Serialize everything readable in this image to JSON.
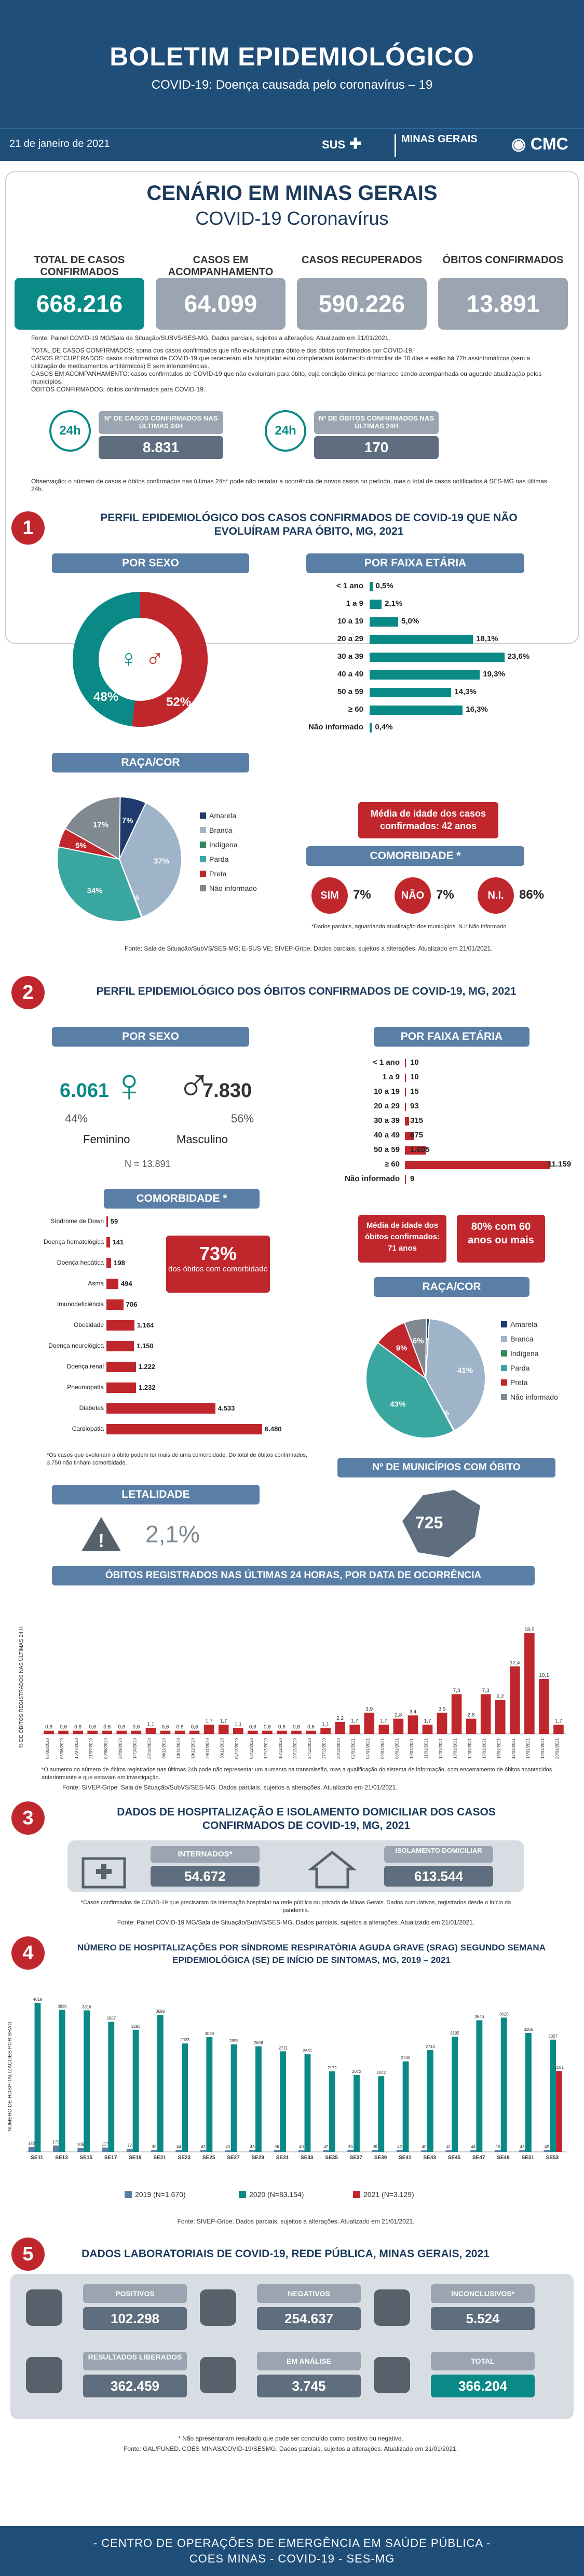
{
  "header": {
    "title": "BOLETIM EPIDEMIOLÓGICO",
    "subtitle": "COVID-19: Doença causada pelo coronavírus – 19"
  },
  "subbar": {
    "date": "21 de janeiro de 2021",
    "sus": "SUS",
    "mg": "MINAS GERAIS",
    "cmc": "CMC"
  },
  "scenario": {
    "title1": "CENÁRIO EM MINAS GERAIS",
    "title2": "COVID-19 Coronavírus",
    "stats": [
      {
        "label": "TOTAL DE CASOS CONFIRMADOS",
        "value": "668.216",
        "color": "#0a8a86"
      },
      {
        "label": "CASOS EM ACOMPANHAMENTO",
        "value": "64.099",
        "color": "#9aa5b1"
      },
      {
        "label": "CASOS RECUPERADOS",
        "value": "590.226",
        "color": "#9aa5b1"
      },
      {
        "label": "ÓBITOS CONFIRMADOS",
        "value": "13.891",
        "color": "#9aa5b1"
      }
    ],
    "fonte": "Fonte: Painel COVID-19 MG/Sala de Situação/SUBVS/SES-MG. Dados parciais, sujeitos a alterações. Atualizado em 21/01/2021.",
    "defs": [
      "TOTAL DE CASOS CONFIRMADOS: soma dos casos confirmados que não evoluíram para óbito e dos óbitos confirmados por COVID-19.",
      "CASOS RECUPERADOS: casos confirmados de COVID-19 que receberam alta hospitalar e/ou completaram isolamento domiciliar de 10 dias e estão há 72h assintomáticos (sem a utilização de medicamentos antitérmicos) E sem intercorrências.",
      "CASOS EM ACOMPANHAMENTO: casos confirmados de COVID-19 que não evoluíram para óbito, cuja condição clínica permanece sendo acompanhada ou aguarde atualização pelos municípios.",
      "ÓBITOS CONFIRMADOS: óbitos confirmados para COVID-19."
    ],
    "last24": [
      {
        "icon": "24h",
        "label": "Nº DE CASOS CONFIRMADOS NAS ÚLTIMAS 24H",
        "value": "8.831"
      },
      {
        "icon": "24h",
        "label": "Nº DE ÓBITOS CONFIRMADOS NAS ÚLTIMAS 24H",
        "value": "170"
      }
    ],
    "obs": "Observação: o número de casos e óbitos confirmados nas últimas 24h* pode não retratar a ocorrência de novos casos no período, mas o total de casos notificados à SES-MG nas últimas 24h."
  },
  "s1": {
    "num": "1",
    "title": "PERFIL EPIDEMIOLÓGICO DOS CASOS CONFIRMADOS DE COVID-19 QUE NÃO EVOLUÍRAM PARA ÓBITO, MG, 2021",
    "sexo_hdr": "POR SEXO",
    "sexo": {
      "f": "48%",
      "m": "52%"
    },
    "faixa_hdr": "POR FAIXA ETÁRIA",
    "faixa": [
      {
        "l": "< 1 ano",
        "v": "0,5%",
        "p": 0.5
      },
      {
        "l": "1 a 9",
        "v": "2,1%",
        "p": 2.1
      },
      {
        "l": "10 a 19",
        "v": "5,0%",
        "p": 5.0
      },
      {
        "l": "20 a 29",
        "v": "18,1%",
        "p": 18.1
      },
      {
        "l": "30 a 39",
        "v": "23,6%",
        "p": 23.6
      },
      {
        "l": "40 a 49",
        "v": "19,3%",
        "p": 19.3
      },
      {
        "l": "50 a 59",
        "v": "14,3%",
        "p": 14.3
      },
      {
        "l": "≥ 60",
        "v": "16,3%",
        "p": 16.3
      },
      {
        "l": "Não informado",
        "v": "0,4%",
        "p": 0.4
      }
    ],
    "media": "Média de idade dos casos confirmados: 42 anos",
    "raca_hdr": "RAÇA/COR",
    "raca": [
      {
        "l": "Amarela",
        "v": "7%",
        "c": "#1f3b6e"
      },
      {
        "l": "Branca",
        "v": "37%",
        "c": "#9fb4c8"
      },
      {
        "l": "Indígena",
        "v": "0%",
        "c": "#2e8b57"
      },
      {
        "l": "Parda",
        "v": "34%",
        "c": "#3aa6a0"
      },
      {
        "l": "Preta",
        "v": "5%",
        "c": "#c0272d"
      },
      {
        "l": "Não informado",
        "v": "17%",
        "c": "#808890"
      }
    ],
    "raca_extra": "0%",
    "comorb_hdr": "COMORBIDADE *",
    "comorb": [
      {
        "l": "SIM",
        "v": "7%"
      },
      {
        "l": "NÃO",
        "v": "7%"
      },
      {
        "l": "N.I.",
        "v": "86%"
      }
    ],
    "comorb_note": "*Dados parciais, aguardando atualização dos municípios. N.I: Não informado",
    "fonte": "Fonte: Sala de Situação/SubVS/SES-MG; E-SUS VE; SIVEP-Gripe. Dados parciais, sujeitos a alterações. Atualizado em 21/01/2021."
  },
  "s2": {
    "num": "2",
    "title": "PERFIL EPIDEMIOLÓGICO DOS ÓBITOS CONFIRMADOS DE COVID-19, MG, 2021",
    "sexo_hdr": "POR SEXO",
    "fem_n": "6.061",
    "fem_p": "44%",
    "fem_l": "Feminino",
    "mas_n": "7.830",
    "mas_p": "56%",
    "mas_l": "Masculino",
    "total": "N = 13.891",
    "faixa_hdr": "POR FAIXA ETÁRIA",
    "faixa": [
      {
        "l": "< 1 ano",
        "v": "10",
        "n": 10
      },
      {
        "l": "1 a 9",
        "v": "10",
        "n": 10
      },
      {
        "l": "10 a 19",
        "v": "15",
        "n": 15
      },
      {
        "l": "20 a 29",
        "v": "93",
        "n": 93
      },
      {
        "l": "30 a 39",
        "v": "315",
        "n": 315
      },
      {
        "l": "40 a 49",
        "v": "675",
        "n": 675
      },
      {
        "l": "50 a 59",
        "v": "1.605",
        "n": 1605
      },
      {
        "l": "≥ 60",
        "v": "11.159",
        "n": 11159
      },
      {
        "l": "Não informado",
        "v": "9",
        "n": 9
      }
    ],
    "media": "Média de idade dos óbitos confirmados: 71 anos",
    "over60": "80% com 60 anos ou mais",
    "comorb_hdr": "COMORBIDADE *",
    "comorb": [
      {
        "l": "Síndrome de Down",
        "v": "59",
        "n": 59
      },
      {
        "l": "Doença hematológica",
        "v": "141",
        "n": 141
      },
      {
        "l": "Doença hepática",
        "v": "198",
        "n": 198
      },
      {
        "l": "Asma",
        "v": "494",
        "n": 494
      },
      {
        "l": "Imunodeficiência",
        "v": "706",
        "n": 706
      },
      {
        "l": "Obesidade",
        "v": "1.164",
        "n": 1164
      },
      {
        "l": "Doença neurológica",
        "v": "1.150",
        "n": 1150
      },
      {
        "l": "Doença renal",
        "v": "1.222",
        "n": 1222
      },
      {
        "l": "Pneumopatia",
        "v": "1.232",
        "n": 1232
      },
      {
        "l": "Diabetes",
        "v": "4.533",
        "n": 4533
      },
      {
        "l": "Cardiopatia",
        "v": "6.480",
        "n": 6480
      }
    ],
    "comorb_pct": "73%",
    "comorb_pct_l": "dos óbitos com comorbidade",
    "comorb_note": "*Os casos que evoluíram a óbito podem ter mais de uma comorbidade. Do total de óbitos confirmados, 3.750 não tinham comorbidade.",
    "raca_hdr": "RAÇA/COR",
    "raca": [
      {
        "l": "Amarela",
        "v": "1%",
        "c": "#1f3b6e"
      },
      {
        "l": "Branca",
        "v": "41%",
        "c": "#9fb4c8"
      },
      {
        "l": "Indígena",
        "v": "0%",
        "c": "#2e8b57"
      },
      {
        "l": "Parda",
        "v": "43%",
        "c": "#3aa6a0"
      },
      {
        "l": "Preta",
        "v": "9%",
        "c": "#c0272d"
      },
      {
        "l": "Não informado",
        "v": "6%",
        "c": "#808890"
      }
    ],
    "mun_hdr": "Nº DE MUNICÍPIOS COM ÓBITO",
    "mun": "725",
    "let_hdr": "LETALIDADE",
    "let": "2,1%"
  },
  "chart24": {
    "title": "ÓBITOS REGISTRADOS NAS ÚLTIMAS 24 HORAS, POR DATA DE OCORRÊNCIA",
    "ylabel": "% DE ÓBITOS REGISTRADOS NAS ÚLTIMAS 24 H",
    "note": "*O aumento no número de óbitos registrados nas últimas 24h pode não representar um aumento na transmissão, mas a qualificação do sistema de informação, com encerramento de óbitos acontecidos anteriormente e que estavam em investigação.",
    "fonte": "Fonte: SIVEP-Gripe. Sala de Situação/SubVS/SES-MG. Dados parciais, sujeitos a alterações. Atualizado em 21/01/2021."
  },
  "chart_data": [
    {
      "type": "bar",
      "title": "ÓBITOS REGISTRADOS NAS ÚLTIMAS 24 HORAS, POR DATA DE OCORRÊNCIA",
      "ylabel": "% DE ÓBITOS REGISTRADOS NAS ÚLTIMAS 24 H",
      "categories": [
        "06/05/2020",
        "05/06/2020",
        "16/07/2020",
        "21/07/2020",
        "09/08/2020",
        "20/09/2020",
        "14/10/2020",
        "28/10/2020",
        "06/11/2020",
        "13/11/2020",
        "19/11/2020",
        "24/11/2020",
        "30/11/2020",
        "04/12/2020",
        "08/12/2020",
        "12/12/2020",
        "16/12/2020",
        "20/12/2020",
        "24/12/2020",
        "27/12/2020",
        "30/12/2020",
        "02/01/2021",
        "04/01/2021",
        "06/01/2021",
        "08/01/2021",
        "10/01/2021",
        "11/01/2021",
        "12/01/2021",
        "13/01/2021",
        "14/01/2021",
        "15/01/2021",
        "16/01/2021",
        "17/01/2021",
        "18/01/2021",
        "19/01/2021",
        "20/01/2021"
      ],
      "values": [
        0.6,
        0.6,
        0.6,
        0.6,
        0.6,
        0.6,
        0.6,
        1.1,
        0.6,
        0.6,
        0.6,
        1.7,
        1.7,
        1.1,
        0.6,
        0.6,
        0.6,
        0.6,
        0.6,
        1.1,
        2.2,
        1.7,
        3.9,
        1.7,
        2.8,
        3.4,
        1.7,
        3.9,
        7.3,
        2.8,
        7.3,
        6.2,
        12.4,
        18.5,
        10.1,
        1.7
      ]
    },
    {
      "type": "bar",
      "title": "NÚMERO DE HOSPITALIZAÇÕES POR SÍNDROME RESPIRATÓRIA AGUDA GRAVE (SRAG) SEGUNDO SEMANA EPIDEMIOLÓGICA (SE) DE INÍCIO DE SINTOMAS, MG, 2019 – 2021",
      "ylabel": "NÚMERO DE HOSPITALIZAÇÕES POR SRAG",
      "categories": [
        "SE11",
        "SE13",
        "SE15",
        "SE17",
        "SE19",
        "SE21",
        "SE23",
        "SE25",
        "SE27",
        "SE29",
        "SE31",
        "SE33",
        "SE35",
        "SE37",
        "SE39",
        "SE41",
        "SE43",
        "SE45",
        "SE47",
        "SE49",
        "SE51",
        "SE53"
      ],
      "series": [
        {
          "name": "2019 (N=1.670)",
          "color": "#5a7fa6",
          "values": [
            133,
            172,
            105,
            117,
            77,
            49,
            44,
            43,
            40,
            43,
            46,
            40,
            42,
            46,
            49,
            42,
            40,
            41,
            44,
            48,
            43,
            45
          ]
        },
        {
          "name": "2020 (N=83.154)",
          "color": "#0a8a86",
          "values": [
            4019,
            3830,
            3816,
            3507,
            3293,
            3695,
            2923,
            3093,
            2898,
            2848,
            2711,
            2631,
            2172,
            2072,
            2042,
            2440,
            2743,
            3105,
            3549,
            3620,
            3205,
            3027
          ]
        },
        {
          "name": "2021 (N=3.129)",
          "color": "#c0272d",
          "values": [
            0,
            0,
            0,
            0,
            0,
            0,
            0,
            0,
            0,
            0,
            0,
            0,
            0,
            0,
            0,
            0,
            0,
            0,
            0,
            0,
            0,
            2181
          ]
        }
      ]
    }
  ],
  "s3": {
    "num": "3",
    "title": "DADOS DE HOSPITALIZAÇÃO E ISOLAMENTO DOMICILIAR DOS CASOS CONFIRMADOS DE COVID-19, MG, 2021",
    "internados_l": "INTERNADOS*",
    "internados": "54.672",
    "isol_l": "ISOLAMENTO DOMICILIAR",
    "isol": "613.544",
    "note": "*Casos confirmados de COVID-19 que precisaram de internação hospitalar na rede pública ou privada de Minas Gerais. Dados cumulativos, registrados desde o início da pandemia.",
    "fonte": "Fonte: Painel COVID-19 MG/Sala de Situação/SubVS/SES-MG. Dados parciais, sujeitos a alterações. Atualizado em 21/01/2021."
  },
  "s4": {
    "num": "4",
    "title": "NÚMERO DE HOSPITALIZAÇÕES POR SÍNDROME RESPIRATÓRIA AGUDA GRAVE (SRAG) SEGUNDO SEMANA EPIDEMIOLÓGICA (SE) DE INÍCIO DE SINTOMAS, MG, 2019 – 2021",
    "ylabel": "NÚMERO DE HOSPITALIZAÇÕES POR SRAG",
    "legend": [
      "2019 (N=1.670)",
      "2020 (N=83.154)",
      "2021 (N=3.129)"
    ],
    "fonte": "Fonte: SIVEP-Gripe. Dados parciais, sujeitos a alterações. Atualizado em 21/01/2021."
  },
  "s5": {
    "num": "5",
    "title": "DADOS LABORATORIAIS DE COVID-19, REDE PÚBLICA, MINAS GERAIS, 2021",
    "items": [
      {
        "l": "POSITIVOS",
        "v": "102.298"
      },
      {
        "l": "NEGATIVOS",
        "v": "254.637"
      },
      {
        "l": "INCONCLUSIVOS*",
        "v": "5.524"
      },
      {
        "l": "RESULTADOS LIBERADOS",
        "v": "362.459"
      },
      {
        "l": "EM ANÁLISE",
        "v": "3.745"
      },
      {
        "l": "TOTAL",
        "v": "366.204"
      }
    ],
    "note": "* Não apresentaram resultado que pode ser concluído como positivo ou negativo.",
    "fonte": "Fonte: GAL/FUNED. COES MINAS/COVID-19/SESMG. Dados parciais, sujeitos a alterações. Atualizado em 21/01/2021."
  },
  "footer": {
    "l1": "- CENTRO DE OPERAÇÕES DE EMERGÊNCIA EM SAÚDE PÚBLICA -",
    "l2": "COES MINAS - COVID-19 - SES-MG"
  }
}
